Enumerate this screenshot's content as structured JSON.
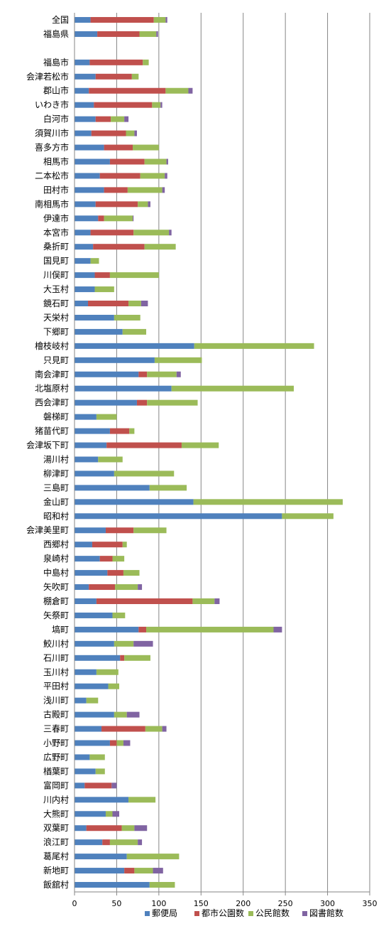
{
  "chart_data": {
    "type": "bar",
    "orientation": "horizontal",
    "stacked": true,
    "title": "",
    "xlabel": "",
    "ylabel": "",
    "xlim": [
      0,
      350
    ],
    "x_ticks": [
      0,
      50,
      100,
      150,
      200,
      250,
      300,
      350
    ],
    "grid": "vertical",
    "legend_position": "bottom",
    "categories": [
      "全国",
      "福島県",
      "",
      "福島市",
      "会津若松市",
      "郡山市",
      "いわき市",
      "白河市",
      "須賀川市",
      "喜多方市",
      "相馬市",
      "二本松市",
      "田村市",
      "南相馬市",
      "伊達市",
      "本宮市",
      "桑折町",
      "国見町",
      "川俣町",
      "大玉村",
      "鏡石町",
      "天栄村",
      "下郷町",
      "檜枝岐村",
      "只見町",
      "南会津町",
      "北塩原村",
      "西会津町",
      "磐梯町",
      "猪苗代町",
      "会津坂下町",
      "湯川村",
      "柳津町",
      "三島町",
      "金山町",
      "昭和村",
      "会津美里町",
      "西郷村",
      "泉崎村",
      "中島村",
      "矢吹町",
      "棚倉町",
      "矢祭町",
      "塙町",
      "鮫川村",
      "石川町",
      "玉川村",
      "平田村",
      "浅川町",
      "古殿町",
      "三春町",
      "小野町",
      "広野町",
      "楢葉町",
      "富岡町",
      "川内村",
      "大熊町",
      "双葉町",
      "浪江町",
      "葛尾村",
      "新地町",
      "飯舘村"
    ],
    "series": [
      {
        "name": "郵便局",
        "color": "#4f81bd",
        "values": [
          19,
          27,
          null,
          18,
          25,
          17,
          23,
          25,
          20,
          35,
          42,
          30,
          35,
          25,
          28,
          19,
          22,
          19,
          24,
          24,
          16,
          47,
          57,
          142,
          95,
          76,
          115,
          74,
          26,
          42,
          38,
          28,
          47,
          89,
          141,
          246,
          37,
          21,
          30,
          39,
          17,
          26,
          45,
          76,
          47,
          54,
          26,
          40,
          14,
          47,
          32,
          42,
          18,
          25,
          12,
          64,
          37,
          14,
          33,
          62,
          59,
          89
        ]
      },
      {
        "name": "都市公園数",
        "color": "#c0504d",
        "values": [
          75,
          50,
          null,
          63,
          43,
          91,
          69,
          18,
          41,
          34,
          41,
          48,
          28,
          50,
          7,
          51,
          61,
          0,
          18,
          0,
          48,
          0,
          0,
          0,
          0,
          10,
          0,
          12,
          0,
          23,
          89,
          0,
          0,
          0,
          0,
          0,
          33,
          36,
          15,
          19,
          31,
          114,
          0,
          9,
          0,
          5,
          0,
          0,
          0,
          0,
          52,
          8,
          0,
          0,
          32,
          0,
          0,
          42,
          9,
          0,
          12,
          0
        ]
      },
      {
        "name": "公民館数",
        "color": "#9bbb59",
        "values": [
          14,
          20,
          null,
          7,
          8,
          27,
          10,
          16,
          10,
          31,
          26,
          29,
          41,
          12,
          34,
          42,
          37,
          10,
          58,
          23,
          15,
          31,
          28,
          142,
          56,
          35,
          145,
          60,
          24,
          6,
          44,
          29,
          71,
          44,
          177,
          61,
          39,
          5,
          14,
          19,
          27,
          26,
          15,
          151,
          23,
          31,
          26,
          13,
          14,
          15,
          20,
          8,
          18,
          11,
          0,
          32,
          8,
          15,
          33,
          62,
          22,
          30
        ]
      },
      {
        "name": "図書館数",
        "color": "#8064a2",
        "values": [
          2,
          2,
          null,
          0,
          0,
          5,
          2,
          5,
          3,
          0,
          2,
          3,
          3,
          3,
          1,
          3,
          0,
          0,
          0,
          0,
          8,
          0,
          0,
          0,
          0,
          5,
          0,
          0,
          0,
          0,
          0,
          0,
          0,
          0,
          0,
          0,
          0,
          0,
          0,
          0,
          5,
          6,
          0,
          10,
          23,
          0,
          0,
          0,
          0,
          15,
          5,
          8,
          0,
          0,
          6,
          0,
          8,
          15,
          5,
          0,
          12,
          0
        ]
      }
    ]
  }
}
